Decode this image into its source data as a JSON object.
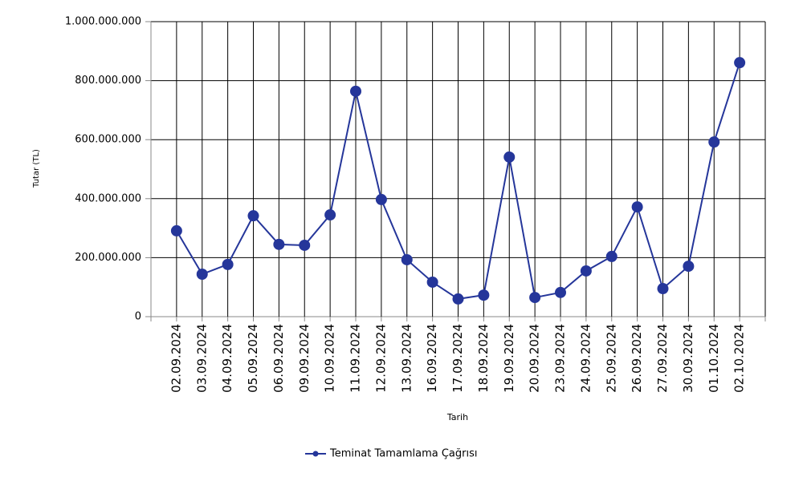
{
  "chart_data": {
    "type": "line",
    "x_label": "Tarih",
    "y_label": "Tutar (TL)",
    "categories": [
      "02.09.2024",
      "03.09.2024",
      "04.09.2024",
      "05.09.2024",
      "06.09.2024",
      "09.09.2024",
      "10.09.2024",
      "11.09.2024",
      "12.09.2024",
      "13.09.2024",
      "16.09.2024",
      "17.09.2024",
      "18.09.2024",
      "19.09.2024",
      "20.09.2024",
      "23.09.2024",
      "24.09.2024",
      "25.09.2024",
      "26.09.2024",
      "27.09.2024",
      "30.09.2024",
      "01.10.2024",
      "02.10.2024"
    ],
    "series": [
      {
        "name": "Teminat Tamamlama Çağrısı",
        "color": "#25369a",
        "values": [
          291000000,
          144000000,
          177000000,
          342000000,
          245000000,
          242000000,
          345000000,
          764000000,
          397000000,
          193000000,
          117000000,
          60000000,
          73000000,
          541000000,
          65000000,
          82000000,
          155000000,
          204000000,
          372000000,
          95000000,
          171000000,
          592000000,
          861000000
        ]
      }
    ],
    "ylim": [
      0,
      1000000000
    ],
    "yticks": [
      0,
      {
        "value": 200000000,
        "label": "200.000.000"
      },
      {
        "value": 400000000,
        "label": "400.000.000"
      },
      {
        "value": 600000000,
        "label": "600.000.000"
      },
      {
        "value": 800000000,
        "label": "800.000.000"
      },
      {
        "value": 1000000000,
        "label": "1.000.000.000"
      }
    ],
    "grid": true,
    "legend": "bottom"
  }
}
